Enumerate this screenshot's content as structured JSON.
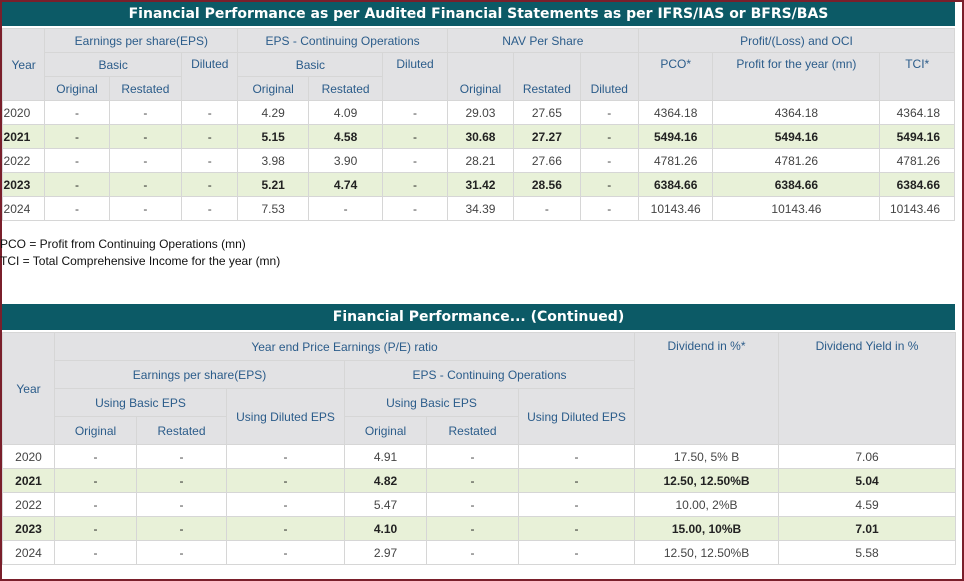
{
  "table1": {
    "title": "Financial Performance as per Audited Financial Statements as per IFRS/IAS or BFRS/BAS",
    "headers": {
      "year": "Year",
      "eps": "Earnings per share(EPS)",
      "eps_cont": "EPS - Continuing Operations",
      "nav": "NAV Per Share",
      "profit_oci": "Profit/(Loss) and OCI",
      "basic": "Basic",
      "diluted": "Diluted",
      "original": "Original",
      "restated": "Restated",
      "pco": "PCO*",
      "profit_year": "Profit for the year (mn)",
      "tci": "TCI*"
    },
    "rows": [
      [
        "2020",
        "-",
        "-",
        "-",
        "4.29",
        "4.09",
        "-",
        "29.03",
        "27.65",
        "-",
        "4364.18",
        "4364.18",
        "4364.18"
      ],
      [
        "2021",
        "-",
        "-",
        "-",
        "5.15",
        "4.58",
        "-",
        "30.68",
        "27.27",
        "-",
        "5494.16",
        "5494.16",
        "5494.16"
      ],
      [
        "2022",
        "-",
        "-",
        "-",
        "3.98",
        "3.90",
        "-",
        "28.21",
        "27.66",
        "-",
        "4781.26",
        "4781.26",
        "4781.26"
      ],
      [
        "2023",
        "-",
        "-",
        "-",
        "5.21",
        "4.74",
        "-",
        "31.42",
        "28.56",
        "-",
        "6384.66",
        "6384.66",
        "6384.66"
      ],
      [
        "2024",
        "-",
        "-",
        "-",
        "7.53",
        "-",
        "-",
        "34.39",
        "-",
        "-",
        "10143.46",
        "10143.46",
        "10143.46"
      ]
    ]
  },
  "notes": {
    "pco": "PCO = Profit from Continuing Operations (mn)",
    "tci": "TCI = Total Comprehensive Income for the year (mn)"
  },
  "table2": {
    "title": "Financial Performance... (Continued)",
    "headers": {
      "year": "Year",
      "pe": "Year end Price Earnings (P/E) ratio",
      "dividend": "Dividend in %*",
      "yield": "Dividend Yield in %",
      "eps": "Earnings per share(EPS)",
      "eps_cont": "EPS - Continuing Operations",
      "using_basic": "Using Basic EPS",
      "using_diluted": "Using Diluted EPS",
      "original": "Original",
      "restated": "Restated"
    },
    "rows": [
      [
        "2020",
        "-",
        "-",
        "-",
        "4.91",
        "-",
        "-",
        "17.50, 5% B",
        "7.06"
      ],
      [
        "2021",
        "-",
        "-",
        "-",
        "4.82",
        "-",
        "-",
        "12.50, 12.50%B",
        "5.04"
      ],
      [
        "2022",
        "-",
        "-",
        "-",
        "5.47",
        "-",
        "-",
        "10.00, 2%B",
        "4.59"
      ],
      [
        "2023",
        "-",
        "-",
        "-",
        "4.10",
        "-",
        "-",
        "15.00, 10%B",
        "7.01"
      ],
      [
        "2024",
        "-",
        "-",
        "-",
        "2.97",
        "-",
        "-",
        "12.50, 12.50%B",
        "5.58"
      ]
    ]
  }
}
